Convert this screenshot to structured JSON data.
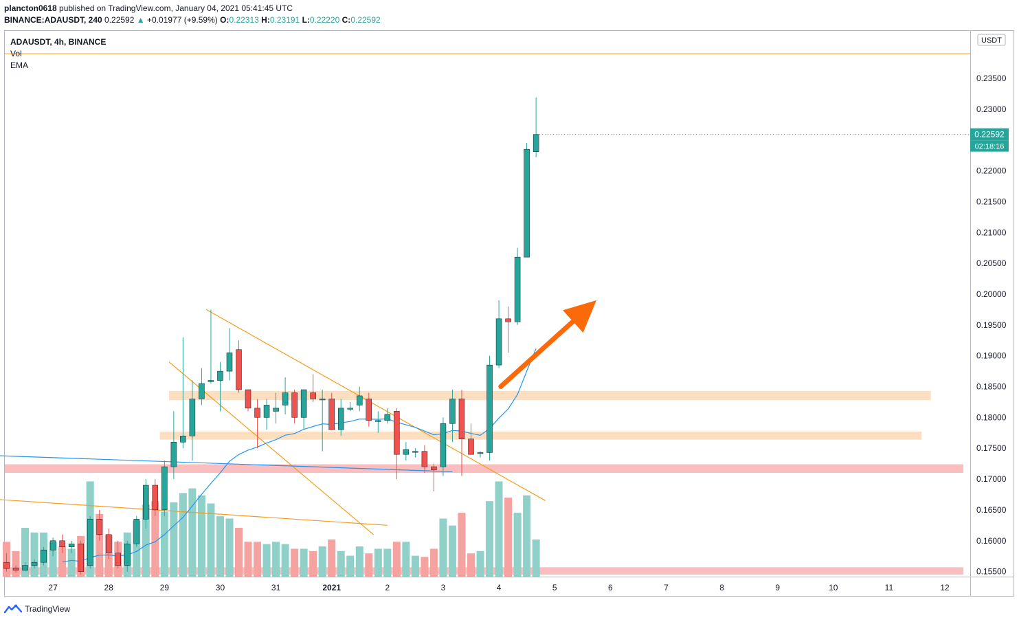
{
  "header": {
    "publisher_line": {
      "user": "plancton0618",
      "text": " published on TradingView.com, January 04, 2021 05:41:45 UTC"
    },
    "symbol_line": {
      "symbol": "BINANCE:ADAUSDT, 240",
      "price": "0.22592",
      "change": "+0.01977 (+9.59%)",
      "o_label": "O:",
      "o": "0.22313",
      "h_label": "H:",
      "h": "0.23191",
      "l_label": "L:",
      "l": "0.22220",
      "c_label": "C:",
      "c": "0.22592"
    }
  },
  "legend": {
    "title": "ADAUSDT, 4h, BINANCE",
    "vol": "Vol",
    "ema": "EMA"
  },
  "footer": {
    "brand": "TradingView"
  },
  "colors": {
    "up": "#26a69a",
    "down": "#ef5350",
    "ema": "#2196f3",
    "trend": "#f59c1a",
    "arrow": "#fb6a0a",
    "zone_orange": "#fbd9b5",
    "zone_red": "#f9b3b3"
  },
  "chart_data": {
    "type": "candlestick",
    "symbol": "ADAUSDT",
    "interval": "4h",
    "exchange": "BINANCE",
    "currency_badge": "USDT",
    "ylim": [
      0.1545,
      0.2405
    ],
    "y_ticks": [
      "0.23500",
      "0.23000",
      "0.22000",
      "0.21500",
      "0.21000",
      "0.20500",
      "0.20000",
      "0.19500",
      "0.19000",
      "0.18500",
      "0.18000",
      "0.17500",
      "0.17000",
      "0.16500",
      "0.16000",
      "0.15500"
    ],
    "x_ticks": [
      {
        "label": "6",
        "x": -1
      },
      {
        "label": "27",
        "x": 5
      },
      {
        "label": "28",
        "x": 11
      },
      {
        "label": "29",
        "x": 17
      },
      {
        "label": "30",
        "x": 23
      },
      {
        "label": "31",
        "x": 29
      },
      {
        "label": "2021",
        "x": 35
      },
      {
        "label": "2",
        "x": 41
      },
      {
        "label": "3",
        "x": 47
      },
      {
        "label": "4",
        "x": 53
      },
      {
        "label": "5",
        "x": 59
      },
      {
        "label": "6",
        "x": 65
      },
      {
        "label": "7",
        "x": 71
      },
      {
        "label": "8",
        "x": 77
      },
      {
        "label": "9",
        "x": 83
      },
      {
        "label": "10",
        "x": 89
      },
      {
        "label": "11",
        "x": 95
      },
      {
        "label": "12",
        "x": 101
      }
    ],
    "last_price_label": "0.22592",
    "countdown_label": "02:18:16",
    "candles": [
      [
        0.1565,
        0.158,
        0.155,
        0.1555
      ],
      [
        0.1556,
        0.156,
        0.1548,
        0.1552
      ],
      [
        0.1552,
        0.1565,
        0.155,
        0.156
      ],
      [
        0.156,
        0.157,
        0.1555,
        0.1565
      ],
      [
        0.1565,
        0.159,
        0.156,
        0.1585
      ],
      [
        0.1585,
        0.1605,
        0.1575,
        0.16
      ],
      [
        0.16,
        0.161,
        0.158,
        0.159
      ],
      [
        0.159,
        0.16,
        0.158,
        0.1595
      ],
      [
        0.1595,
        0.16,
        0.1545,
        0.155
      ],
      [
        0.156,
        0.164,
        0.1555,
        0.1635
      ],
      [
        0.1635,
        0.165,
        0.16,
        0.161
      ],
      [
        0.161,
        0.162,
        0.157,
        0.158
      ],
      [
        0.158,
        0.16,
        0.1555,
        0.156
      ],
      [
        0.156,
        0.16,
        0.155,
        0.1595
      ],
      [
        0.1595,
        0.164,
        0.159,
        0.1635
      ],
      [
        0.1635,
        0.17,
        0.162,
        0.169
      ],
      [
        0.169,
        0.17,
        0.164,
        0.165
      ],
      [
        0.165,
        0.173,
        0.164,
        0.172
      ],
      [
        0.172,
        0.181,
        0.17,
        0.176
      ],
      [
        0.176,
        0.193,
        0.175,
        0.177
      ],
      [
        0.177,
        0.186,
        0.173,
        0.183
      ],
      [
        0.183,
        0.188,
        0.182,
        0.1855
      ],
      [
        0.1858,
        0.1975,
        0.1855,
        0.186
      ],
      [
        0.186,
        0.189,
        0.181,
        0.1875
      ],
      [
        0.1875,
        0.1945,
        0.186,
        0.1905
      ],
      [
        0.191,
        0.1925,
        0.184,
        0.1845
      ],
      [
        0.1845,
        0.184,
        0.181,
        0.1815
      ],
      [
        0.1815,
        0.183,
        0.175,
        0.18
      ],
      [
        0.18,
        0.183,
        0.178,
        0.182
      ],
      [
        0.181,
        0.184,
        0.179,
        0.1815
      ],
      [
        0.182,
        0.1865,
        0.1805,
        0.184
      ],
      [
        0.184,
        0.1845,
        0.179,
        0.18
      ],
      [
        0.18,
        0.1845,
        0.178,
        0.1845
      ],
      [
        0.184,
        0.187,
        0.1825,
        0.183
      ],
      [
        0.183,
        0.1845,
        0.1745,
        0.183
      ],
      [
        0.183,
        0.184,
        0.178,
        0.178
      ],
      [
        0.178,
        0.183,
        0.177,
        0.1815
      ],
      [
        0.1815,
        0.1825,
        0.181,
        0.1815
      ],
      [
        0.182,
        0.185,
        0.181,
        0.1835
      ],
      [
        0.183,
        0.184,
        0.1785,
        0.1795
      ],
      [
        0.1795,
        0.181,
        0.1775,
        0.1795
      ],
      [
        0.1795,
        0.1815,
        0.179,
        0.1805
      ],
      [
        0.181,
        0.1815,
        0.17,
        0.174
      ],
      [
        0.174,
        0.176,
        0.173,
        0.1748
      ],
      [
        0.1745,
        0.175,
        0.1735,
        0.1745
      ],
      [
        0.1745,
        0.1755,
        0.171,
        0.172
      ],
      [
        0.172,
        0.1725,
        0.168,
        0.1715
      ],
      [
        0.172,
        0.18,
        0.1705,
        0.179
      ],
      [
        0.179,
        0.1845,
        0.176,
        0.183
      ],
      [
        0.183,
        0.1845,
        0.1705,
        0.1765
      ],
      [
        0.1765,
        0.179,
        0.174,
        0.174
      ],
      [
        0.1742,
        0.1745,
        0.1735,
        0.1743
      ],
      [
        0.1743,
        0.19,
        0.173,
        0.1885
      ],
      [
        0.1885,
        0.199,
        0.188,
        0.196
      ],
      [
        0.196,
        0.198,
        0.1905,
        0.1955
      ],
      [
        0.1955,
        0.2075,
        0.195,
        0.206
      ],
      [
        0.206,
        0.2245,
        0.206,
        0.2235
      ],
      [
        0.2231,
        0.2319,
        0.2222,
        0.2259
      ]
    ],
    "volumes": [
      30,
      22,
      42,
      38,
      38,
      30,
      26,
      24,
      35,
      82,
      54,
      36,
      30,
      38,
      48,
      62,
      65,
      56,
      64,
      72,
      76,
      70,
      63,
      52,
      50,
      42,
      30,
      30,
      28,
      30,
      28,
      24,
      24,
      22,
      26,
      32,
      22,
      18,
      26,
      20,
      24,
      24,
      30,
      30,
      18,
      17,
      24,
      50,
      44,
      55,
      20,
      22,
      65,
      82,
      68,
      55,
      70,
      32
    ]
  },
  "annotations": {
    "zones": [
      {
        "from": 0.1828,
        "to": 0.1843,
        "start": 17.5,
        "end": 99.5,
        "kind": "orange"
      },
      {
        "from": 0.1764,
        "to": 0.1777,
        "start": 16.5,
        "end": 98.5,
        "kind": "orange"
      },
      {
        "from": 0.171,
        "to": 0.1724,
        "start": -1.5,
        "end": 103,
        "kind": "red"
      },
      {
        "from": 0.1545,
        "to": 0.1557,
        "start": -1.5,
        "end": 103,
        "kind": "red"
      }
    ],
    "horizontal_line": {
      "price": 0.239,
      "kind": "trend"
    },
    "trend_lines": [
      {
        "from": [
          21.5,
          0.1975
        ],
        "to": [
          58,
          0.1665
        ],
        "kind": "trend"
      },
      {
        "from": [
          17.5,
          0.189
        ],
        "to": [
          39.5,
          0.161
        ],
        "kind": "trend"
      },
      {
        "from": [
          -1,
          0.1667
        ],
        "to": [
          41,
          0.1625
        ],
        "kind": "trend"
      },
      {
        "from": [
          -1,
          0.1738
        ],
        "to": [
          48,
          0.1712
        ],
        "kind": "ema"
      }
    ],
    "arrow": {
      "from": [
        53.2,
        0.185
      ],
      "to": [
        63.5,
        0.199
      ]
    }
  }
}
